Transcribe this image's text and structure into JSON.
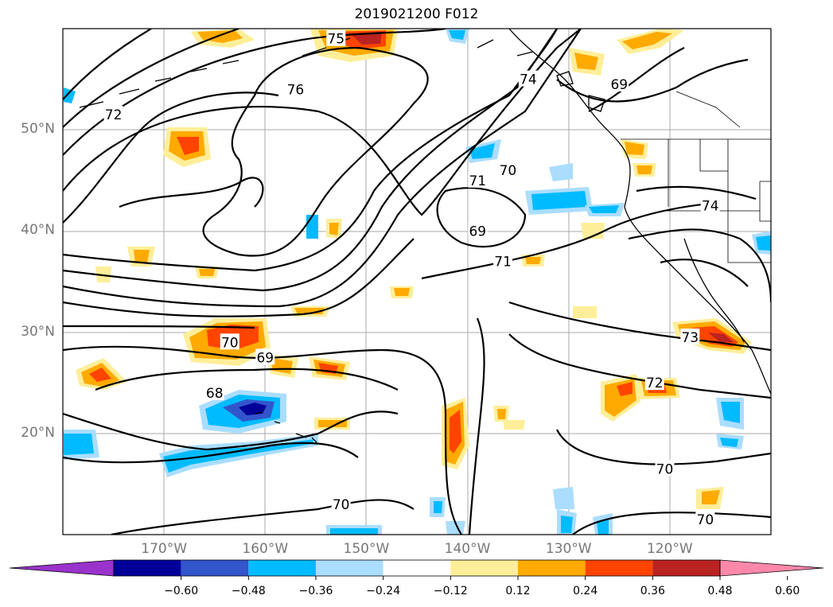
{
  "title": "2019021200 F012",
  "map": {
    "domain": {
      "lon_min": -180,
      "lon_max": -110,
      "lat_min": 10,
      "lat_max": 60
    },
    "lat_labels": [
      {
        "lat": 50,
        "label": "50°N"
      },
      {
        "lat": 40,
        "label": "40°N"
      },
      {
        "lat": 30,
        "label": "30°N"
      },
      {
        "lat": 20,
        "label": "20°N"
      }
    ],
    "lon_labels": [
      {
        "lon": -170,
        "label": "170°W"
      },
      {
        "lon": -160,
        "label": "160°W"
      },
      {
        "lon": -150,
        "label": "150°W"
      },
      {
        "lon": -140,
        "label": "140°W"
      },
      {
        "lon": -130,
        "label": "130°W"
      },
      {
        "lon": -120,
        "label": "120°W"
      }
    ],
    "contour_labels": [
      {
        "text": "72",
        "lon": -175,
        "lat": 51.5
      },
      {
        "text": "75",
        "lon": -153,
        "lat": 59
      },
      {
        "text": "76",
        "lon": -157,
        "lat": 54
      },
      {
        "text": "74",
        "lon": -134,
        "lat": 55
      },
      {
        "text": "69",
        "lon": -125,
        "lat": 54.5
      },
      {
        "text": "71",
        "lon": -139,
        "lat": 45
      },
      {
        "text": "70",
        "lon": -136,
        "lat": 46
      },
      {
        "text": "69",
        "lon": -139,
        "lat": 40
      },
      {
        "text": "71",
        "lon": -136.5,
        "lat": 37
      },
      {
        "text": "74",
        "lon": -116,
        "lat": 42.5
      },
      {
        "text": "70",
        "lon": -163.5,
        "lat": 29
      },
      {
        "text": "69",
        "lon": -160,
        "lat": 27.5
      },
      {
        "text": "68",
        "lon": -165,
        "lat": 24
      },
      {
        "text": "73",
        "lon": -118,
        "lat": 29.5
      },
      {
        "text": "72",
        "lon": -121.5,
        "lat": 25
      },
      {
        "text": "70",
        "lon": -120.5,
        "lat": 16.5
      },
      {
        "text": "70",
        "lon": -152.5,
        "lat": 13
      },
      {
        "text": "70",
        "lon": -116.5,
        "lat": 11.5
      }
    ]
  },
  "colorbar": {
    "colors": [
      "#9933cc",
      "#000099",
      "#3355cc",
      "#00bbff",
      "#aaddff",
      "#ffffff",
      "#ffee99",
      "#ffaa00",
      "#ff4400",
      "#bb2222",
      "#ff88aa"
    ],
    "ticks": [
      "−0.60",
      "−0.48",
      "−0.36",
      "−0.24",
      "−0.12",
      "0.12",
      "0.24",
      "0.36",
      "0.48",
      "0.60"
    ]
  }
}
